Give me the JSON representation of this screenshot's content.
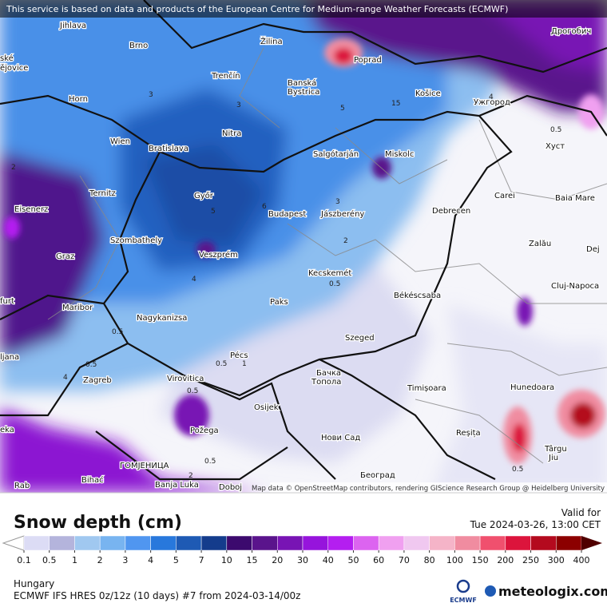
{
  "banner": "This service is based on data and products of the European Centre for Medium-range Weather Forecasts (ECMWF)",
  "attribution": "Map data © OpenStreetMap contributors, rendering GIScience Research Group @ Heidelberg University",
  "cities": [
    "Jihlava",
    "Brno",
    "Žilina",
    "Poprad",
    "Дрогобич",
    "ské",
    "ějovice",
    "Trenčín",
    "Banská",
    "Bystrica",
    "Horn",
    "Košice",
    "Ужгород",
    "Wien",
    "Bratislava",
    "Nitra",
    "Salgótarján",
    "Miskolc",
    "Хуст",
    "Eisenerz",
    "Ternitz",
    "Győr",
    "Budapest",
    "Jászberény",
    "Debrecen",
    "Carei",
    "Baia Mare",
    "Graz",
    "Szombathely",
    "Veszprém",
    "Zalău",
    "Dej",
    "furt",
    "Kecskemét",
    "Cluj-Napoca",
    "Maribor",
    "Paks",
    "Békéscsaba",
    "Nagykanizsa",
    "ljana",
    "Pécs",
    "Szeged",
    "Zagreb",
    "Virovitica",
    "Бачка",
    "Топола",
    "Timișoara",
    "Hunedoara",
    "Osijek",
    "eka",
    "Požega",
    "Нови Сад",
    "Reșița",
    "Târgu",
    "Jiu",
    "ГОМЈЕНИЦА",
    "Bihać",
    "Banja Luka",
    "Doboj",
    "Београд",
    "Rab"
  ],
  "contour_labels": [
    3,
    3,
    5,
    4,
    15,
    2,
    0.5,
    3,
    5,
    6,
    2,
    4,
    0.5,
    0.5,
    0.5,
    1,
    0.5,
    0.5,
    4,
    0.5,
    0.5,
    2
  ],
  "legend": {
    "title": "Snow depth (cm)",
    "valid_label": "Valid for",
    "valid_time": "Tue 2024-03-26, 13:00 CET",
    "thresholds": [
      0.1,
      0.5,
      1,
      2,
      3,
      4,
      5,
      7,
      10,
      15,
      20,
      30,
      40,
      50,
      60,
      70,
      80,
      100,
      150,
      200,
      250,
      300,
      400
    ],
    "colors": [
      "#ffffff",
      "#dcdcf5",
      "#b4b4dc",
      "#a0c8f0",
      "#78b4f0",
      "#5096f0",
      "#2878dc",
      "#1e5ab4",
      "#143c8c",
      "#3c0a6e",
      "#5a148c",
      "#7814b4",
      "#9614dc",
      "#b41ef0",
      "#dc64f0",
      "#f0a0f0",
      "#f0c8f0",
      "#f5b4c8",
      "#f08ca0",
      "#f0506e",
      "#dc143c",
      "#b40a1e",
      "#8c0000",
      "#500000"
    ]
  },
  "footer": {
    "region": "Hungary",
    "model": "ECMWF IFS HRES 0z/12z (10 days) #7 from  2024-03-14/00z",
    "ecmwf": "ECMWF",
    "brand": "meteologix.com"
  }
}
